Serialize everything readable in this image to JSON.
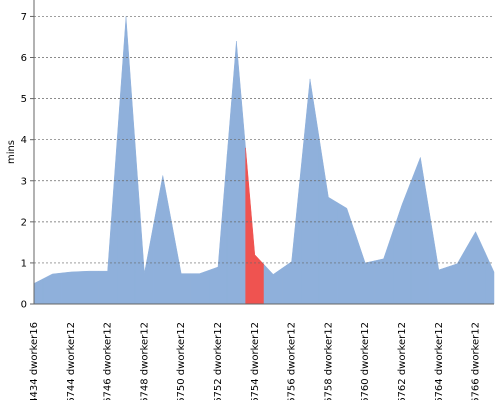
{
  "chart_data": {
    "type": "area",
    "y_label": "mins",
    "categories": [
      "#4434 dworker16",
      null,
      "#6744 dworker12",
      null,
      "#6746 dworker12",
      null,
      "#6748 dworker12",
      null,
      "#6750 dworker12",
      null,
      "#6752 dworker12",
      null,
      "#6754 dworker12",
      null,
      "#6756 dworker12",
      null,
      "#6758 dworker12",
      null,
      "#6760 dworker12",
      null,
      "#6762 dworker12",
      null,
      "#6764 dworker12",
      null,
      "#6766 dworker12",
      null
    ],
    "values": [
      0.5,
      0.73,
      0.78,
      0.8,
      0.8,
      7.0,
      0.75,
      3.13,
      0.74,
      0.74,
      0.9,
      6.4,
      1.2,
      0.72,
      1.03,
      5.48,
      2.6,
      2.33,
      1.0,
      1.1,
      2.42,
      3.57,
      0.83,
      0.98,
      1.76,
      0.78
    ],
    "colors": [
      "#8fb0db",
      "#8fb0db",
      "#8fb0db",
      "#8fb0db",
      "#8fb0db",
      "#8fb0db",
      "#8fb0db",
      "#8fb0db",
      "#8fb0db",
      "#8fb0db",
      "#8fb0db",
      "#8fb0db",
      "#ef5350",
      "#8fb0db",
      "#8fb0db",
      "#8fb0db",
      "#8fb0db",
      "#8fb0db",
      "#8fb0db",
      "#8fb0db",
      "#8fb0db",
      "#8fb0db",
      "#8fb0db",
      "#8fb0db",
      "#8fb0db",
      "#8fb0db"
    ],
    "ylim": [
      0,
      7.4
    ],
    "yticks": [
      0,
      1,
      2,
      3,
      4,
      5,
      6,
      7
    ],
    "grid": true
  }
}
